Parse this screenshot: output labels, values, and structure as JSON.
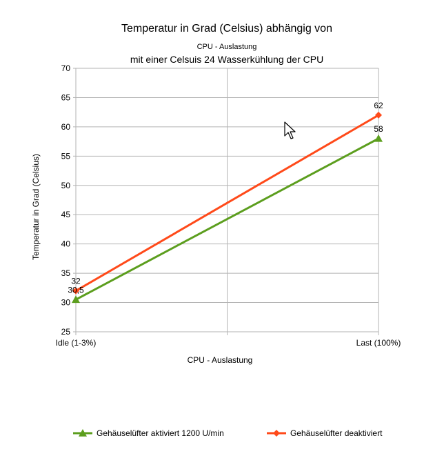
{
  "chart_data": {
    "type": "line",
    "title": "Temperatur in Grad (Celsius) abhängig von",
    "subtitle": "CPU - Auslastung",
    "subtitle2": "mit einer Celsuis 24 Wasserkühlung der CPU",
    "xlabel": "CPU - Auslastung",
    "ylabel": "Temperatur in Grad (Celsius)",
    "categories": [
      "Idle (1-3%)",
      "Last (100%)"
    ],
    "ylim": [
      25,
      70
    ],
    "yticks": [
      25,
      30,
      35,
      40,
      45,
      50,
      55,
      60,
      65,
      70
    ],
    "grid": true,
    "legend_position": "bottom",
    "series": [
      {
        "name": "Gehäuselüfter aktiviert 1200 U/min",
        "values": [
          30.5,
          58
        ],
        "labels": [
          "30,5",
          "58"
        ],
        "color": "#5c9e1e",
        "marker": "triangle"
      },
      {
        "name": "Gehäuselüfter deaktiviert",
        "values": [
          32,
          62
        ],
        "labels": [
          "32",
          "62"
        ],
        "color": "#ff4a1a",
        "marker": "diamond"
      }
    ]
  }
}
